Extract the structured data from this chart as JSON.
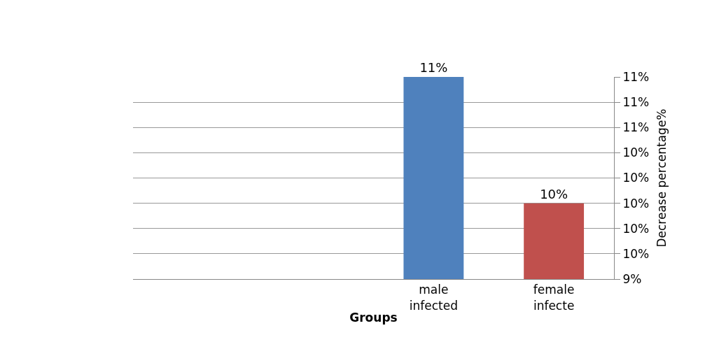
{
  "chart_data": {
    "type": "bar",
    "xlabel": "Groups",
    "ylabel": "Decrease percentage%",
    "categories": [
      null,
      null,
      "male infected",
      "female infecte"
    ],
    "values": [
      null,
      null,
      11.0,
      10.0
    ],
    "colors": [
      "#4f81bd",
      "#4f81bd",
      "#4f81bd",
      "#c0504d"
    ],
    "value_labels": [
      null,
      null,
      "11%",
      "10%"
    ],
    "ylim": [
      9.4,
      11.0
    ],
    "yticks": [
      {
        "value": 9.4,
        "label": "9%"
      },
      {
        "value": 9.6,
        "label": "10%"
      },
      {
        "value": 9.8,
        "label": "10%"
      },
      {
        "value": 10.0,
        "label": "10%"
      },
      {
        "value": 10.2,
        "label": "10%"
      },
      {
        "value": 10.4,
        "label": "10%"
      },
      {
        "value": 10.6,
        "label": "11%"
      },
      {
        "value": 10.8,
        "label": "11%"
      },
      {
        "value": 11.0,
        "label": "11%"
      }
    ],
    "grid": "y"
  }
}
